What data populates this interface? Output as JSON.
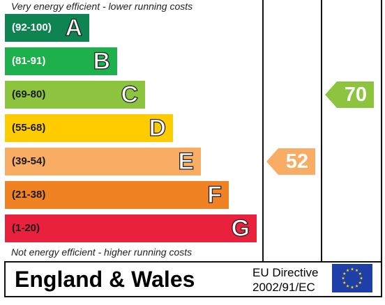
{
  "chart_data": {
    "type": "bar",
    "title": "",
    "top_caption": "Very energy efficient - lower running costs",
    "bottom_caption": "Not energy efficient - higher running costs",
    "bands": [
      {
        "range": "(92-100)",
        "letter": "A",
        "min": 92,
        "max": 100,
        "color": "#0f8453",
        "range_color": "#ffffff"
      },
      {
        "range": "(81-91)",
        "letter": "B",
        "min": 81,
        "max": 91,
        "color": "#1fb04e",
        "range_color": "#ffffff"
      },
      {
        "range": "(69-80)",
        "letter": "C",
        "min": 69,
        "max": 80,
        "color": "#8cc43f",
        "range_color": "#1a1a1a"
      },
      {
        "range": "(55-68)",
        "letter": "D",
        "min": 55,
        "max": 68,
        "color": "#ffcc00",
        "range_color": "#1a1a1a"
      },
      {
        "range": "(39-54)",
        "letter": "E",
        "min": 39,
        "max": 54,
        "color": "#f9ac64",
        "range_color": "#1a1a1a"
      },
      {
        "range": "(21-38)",
        "letter": "F",
        "min": 21,
        "max": 38,
        "color": "#f08224",
        "range_color": "#1a1a1a"
      },
      {
        "range": "(1-20)",
        "letter": "G",
        "min": 1,
        "max": 20,
        "color": "#e9213c",
        "range_color": "#1a1a1a"
      }
    ],
    "series": [
      {
        "values": [
          52
        ],
        "band": "E",
        "color": "#f9ac64"
      },
      {
        "values": [
          70
        ],
        "band": "C",
        "color": "#8cc43f"
      }
    ]
  },
  "footer": {
    "region": "England & Wales",
    "directive_line1": "EU Directive",
    "directive_line2": "2002/91/EC",
    "flag_icon": "eu-flag-icon"
  }
}
